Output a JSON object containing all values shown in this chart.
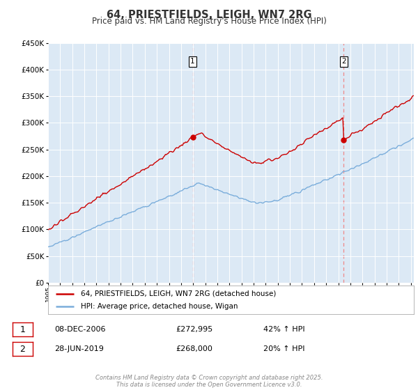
{
  "title": "64, PRIESTFIELDS, LEIGH, WN7 2RG",
  "subtitle": "Price paid vs. HM Land Registry's House Price Index (HPI)",
  "legend_entry1": "64, PRIESTFIELDS, LEIGH, WN7 2RG (detached house)",
  "legend_entry2": "HPI: Average price, detached house, Wigan",
  "sale1_date": "08-DEC-2006",
  "sale1_price": "£272,995",
  "sale1_hpi": "42% ↑ HPI",
  "sale2_date": "28-JUN-2019",
  "sale2_price": "£268,000",
  "sale2_hpi": "20% ↑ HPI",
  "footer": "Contains HM Land Registry data © Crown copyright and database right 2025.\nThis data is licensed under the Open Government Licence v3.0.",
  "plot_bg": "#dce9f5",
  "fig_bg": "#ffffff",
  "red_line_color": "#cc0000",
  "blue_line_color": "#7aaddb",
  "vline_color": "#ee8888",
  "grid_color": "#ffffff",
  "ylim_min": 0,
  "ylim_max": 450000,
  "title_color": "#333333",
  "sale1_t": 2006.958,
  "sale2_t": 2019.458,
  "sale1_price_val": 272995,
  "sale2_price_val": 268000
}
